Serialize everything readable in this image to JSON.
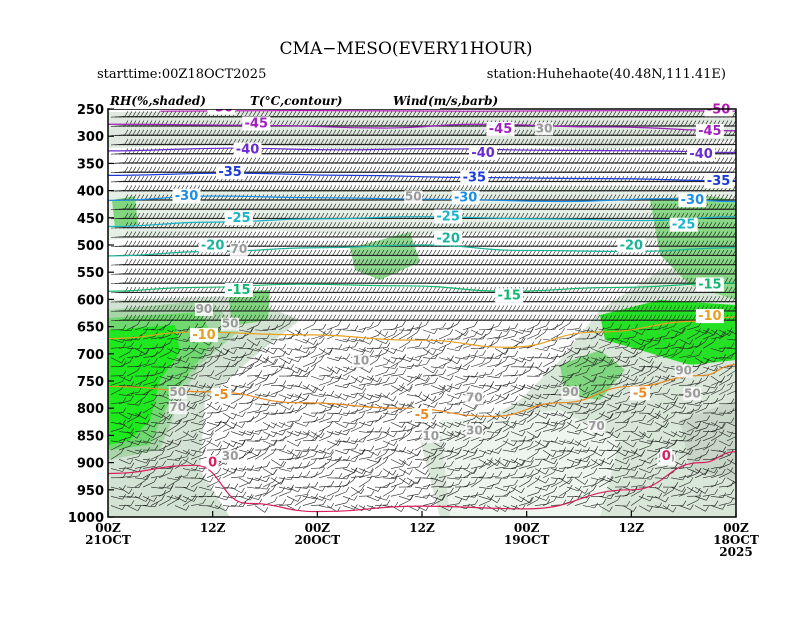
{
  "title": "CMA−MESO(EVERY1HOUR)",
  "starttime": "starttime:00Z18OCT2025",
  "station": "station:Huhehaote(40.48N,111.41E)",
  "legend": {
    "rh": "RH(%,shaded)",
    "temp": "T(°C,contour)",
    "wind": "Wind(m/s,barb)"
  },
  "colors": {
    "rh_light": "#e8f2e8",
    "rh_mid": "#c9dcc9",
    "rh_70": "#a8d4a8",
    "rh_green": "#7fd67f",
    "rh_bright": "#39e039",
    "rh_vivid": "#00e600"
  },
  "chart_data": {
    "type": "time-height cross section",
    "x_ticks": [
      {
        "time_hours_ago": 72,
        "label1": "00Z",
        "label2": "21OCT",
        "label3": ""
      },
      {
        "time_hours_ago": 60,
        "label1": "12Z",
        "label2": "",
        "label3": ""
      },
      {
        "time_hours_ago": 48,
        "label1": "00Z",
        "label2": "20OCT",
        "label3": ""
      },
      {
        "time_hours_ago": 36,
        "label1": "12Z",
        "label2": "",
        "label3": ""
      },
      {
        "time_hours_ago": 24,
        "label1": "00Z",
        "label2": "19OCT",
        "label3": ""
      },
      {
        "time_hours_ago": 12,
        "label1": "12Z",
        "label2": "",
        "label3": ""
      },
      {
        "time_hours_ago": 0,
        "label1": "00Z",
        "label2": "18OCT",
        "label3": "2025"
      }
    ],
    "y_axis": {
      "scale": "pressure (hPa), decreasing upward",
      "ticks": [
        250,
        300,
        350,
        400,
        450,
        500,
        550,
        600,
        650,
        700,
        750,
        800,
        850,
        900,
        950,
        1000
      ]
    },
    "temperature_contours": [
      {
        "value": -50,
        "color": "#b01ab0",
        "points": [
          [
            66,
            254
          ],
          [
            50,
            253
          ],
          [
            30,
            254
          ],
          [
            10,
            253
          ],
          [
            0,
            254
          ]
        ]
      },
      {
        "value": -45,
        "color": "#a020c0",
        "points": [
          [
            72,
            278
          ],
          [
            55,
            280
          ],
          [
            40,
            285
          ],
          [
            30,
            278
          ],
          [
            15,
            283
          ],
          [
            0,
            290
          ]
        ]
      },
      {
        "value": -40,
        "color": "#6a2bd0",
        "points": [
          [
            72,
            327
          ],
          [
            58,
            322
          ],
          [
            45,
            325
          ],
          [
            35,
            323
          ],
          [
            20,
            326
          ],
          [
            10,
            327
          ],
          [
            0,
            330
          ]
        ]
      },
      {
        "value": -35,
        "color": "#1a3ad8",
        "points": [
          [
            72,
            372
          ],
          [
            58,
            368
          ],
          [
            44,
            372
          ],
          [
            30,
            376
          ],
          [
            15,
            378
          ],
          [
            0,
            382
          ]
        ]
      },
      {
        "value": -30,
        "color": "#1a8ee8",
        "points": [
          [
            72,
            418
          ],
          [
            60,
            410
          ],
          [
            48,
            413
          ],
          [
            34,
            416
          ],
          [
            20,
            420
          ],
          [
            8,
            415
          ],
          [
            0,
            420
          ]
        ]
      },
      {
        "value": -25,
        "color": "#18b4c8",
        "points": [
          [
            72,
            466
          ],
          [
            60,
            458
          ],
          [
            48,
            452
          ],
          [
            36,
            448
          ],
          [
            22,
            452
          ],
          [
            10,
            455
          ],
          [
            0,
            448
          ]
        ]
      },
      {
        "value": -20,
        "color": "#1ab49a",
        "points": [
          [
            72,
            520
          ],
          [
            60,
            512
          ],
          [
            48,
            505
          ],
          [
            36,
            500
          ],
          [
            24,
            510
          ],
          [
            12,
            512
          ],
          [
            0,
            505
          ]
        ]
      },
      {
        "value": -15,
        "color": "#12b870",
        "points": [
          [
            72,
            585
          ],
          [
            62,
            578
          ],
          [
            50,
            572
          ],
          [
            38,
            575
          ],
          [
            26,
            585
          ],
          [
            14,
            578
          ],
          [
            0,
            570
          ]
        ]
      },
      {
        "value": -10,
        "color": "#e8a020",
        "points": [
          [
            72,
            672
          ],
          [
            62,
            660
          ],
          [
            50,
            665
          ],
          [
            36,
            675
          ],
          [
            26,
            688
          ],
          [
            16,
            660
          ],
          [
            4,
            640
          ],
          [
            0,
            632
          ]
        ]
      },
      {
        "value": -5,
        "color": "#e88a20",
        "points": [
          [
            72,
            760
          ],
          [
            60,
            770
          ],
          [
            50,
            790
          ],
          [
            38,
            800
          ],
          [
            28,
            815
          ],
          [
            20,
            790
          ],
          [
            12,
            760
          ],
          [
            4,
            740
          ],
          [
            0,
            720
          ]
        ]
      },
      {
        "value": 0,
        "color": "#d82060",
        "points": [
          [
            72,
            920
          ],
          [
            62,
            905
          ],
          [
            56,
            975
          ],
          [
            48,
            990
          ],
          [
            36,
            980
          ],
          [
            24,
            985
          ],
          [
            12,
            950
          ],
          [
            4,
            900
          ],
          [
            0,
            880
          ]
        ]
      }
    ],
    "temperature_labels": [
      {
        "text": "-50",
        "t": 59,
        "p": 255,
        "color": "#b01ab0"
      },
      {
        "text": "-50",
        "t": 2,
        "p": 258,
        "color": "#b01ab0"
      },
      {
        "text": "-45",
        "t": 55,
        "p": 284,
        "color": "#a020c0"
      },
      {
        "text": "-45",
        "t": 27,
        "p": 294,
        "color": "#a020c0"
      },
      {
        "text": "-45",
        "t": 3,
        "p": 298,
        "color": "#a020c0"
      },
      {
        "text": "-40",
        "t": 56,
        "p": 332,
        "color": "#6a2bd0"
      },
      {
        "text": "-40",
        "t": 29,
        "p": 338,
        "color": "#6a2bd0"
      },
      {
        "text": "-40",
        "t": 4,
        "p": 340,
        "color": "#6a2bd0"
      },
      {
        "text": "-35",
        "t": 58,
        "p": 373,
        "color": "#1a3ad8"
      },
      {
        "text": "-35",
        "t": 30,
        "p": 383,
        "color": "#1a3ad8"
      },
      {
        "text": "-35",
        "t": 2,
        "p": 390,
        "color": "#1a3ad8"
      },
      {
        "text": "-30",
        "t": 63,
        "p": 417,
        "color": "#1a8ee8"
      },
      {
        "text": "-30",
        "t": 31,
        "p": 420,
        "color": "#1a8ee8"
      },
      {
        "text": "-30",
        "t": 5,
        "p": 425,
        "color": "#1a8ee8"
      },
      {
        "text": "-25",
        "t": 57,
        "p": 458,
        "color": "#18b4c8"
      },
      {
        "text": "-25",
        "t": 33,
        "p": 455,
        "color": "#18b4c8"
      },
      {
        "text": "-25",
        "t": 6,
        "p": 470,
        "color": "#18b4c8"
      },
      {
        "text": "-20",
        "t": 60,
        "p": 508,
        "color": "#1ab49a"
      },
      {
        "text": "-20",
        "t": 33,
        "p": 495,
        "color": "#1ab49a"
      },
      {
        "text": "-20",
        "t": 12,
        "p": 508,
        "color": "#1ab49a"
      },
      {
        "text": "-15",
        "t": 57,
        "p": 590,
        "color": "#12b870"
      },
      {
        "text": "-15",
        "t": 26,
        "p": 600,
        "color": "#12b870"
      },
      {
        "text": "-15",
        "t": 3,
        "p": 580,
        "color": "#12b870"
      },
      {
        "text": "-10",
        "t": 61,
        "p": 673,
        "color": "#e8a020"
      },
      {
        "text": "-10",
        "t": 3,
        "p": 638,
        "color": "#e8a020"
      },
      {
        "text": "-5",
        "t": 59,
        "p": 783,
        "color": "#e88a20"
      },
      {
        "text": "-5",
        "t": 36,
        "p": 820,
        "color": "#e88a20"
      },
      {
        "text": "-5",
        "t": 11,
        "p": 780,
        "color": "#e88a20"
      },
      {
        "text": "0",
        "t": 60,
        "p": 907,
        "color": "#d82060"
      },
      {
        "text": "0",
        "t": 8,
        "p": 895,
        "color": "#d82060"
      }
    ],
    "rh_labels": [
      {
        "text": "30",
        "t": 22,
        "p": 293
      },
      {
        "text": "50",
        "t": 37,
        "p": 418
      },
      {
        "text": "90",
        "t": 61,
        "p": 625
      },
      {
        "text": "50",
        "t": 58,
        "p": 652
      },
      {
        "text": "70",
        "t": 57,
        "p": 515
      },
      {
        "text": "10",
        "t": 43,
        "p": 720
      },
      {
        "text": "50",
        "t": 64,
        "p": 778
      },
      {
        "text": "70",
        "t": 64,
        "p": 805
      },
      {
        "text": "30",
        "t": 58,
        "p": 895
      },
      {
        "text": "70",
        "t": 30,
        "p": 788
      },
      {
        "text": "90",
        "t": 19,
        "p": 778
      },
      {
        "text": "70",
        "t": 16,
        "p": 840
      },
      {
        "text": "90",
        "t": 6,
        "p": 738
      },
      {
        "text": "50",
        "t": 5,
        "p": 780
      },
      {
        "text": "30",
        "t": 30,
        "p": 848
      },
      {
        "text": "10",
        "t": 35,
        "p": 858
      },
      {
        "text": "50",
        "t": 8,
        "p": 900
      }
    ]
  }
}
